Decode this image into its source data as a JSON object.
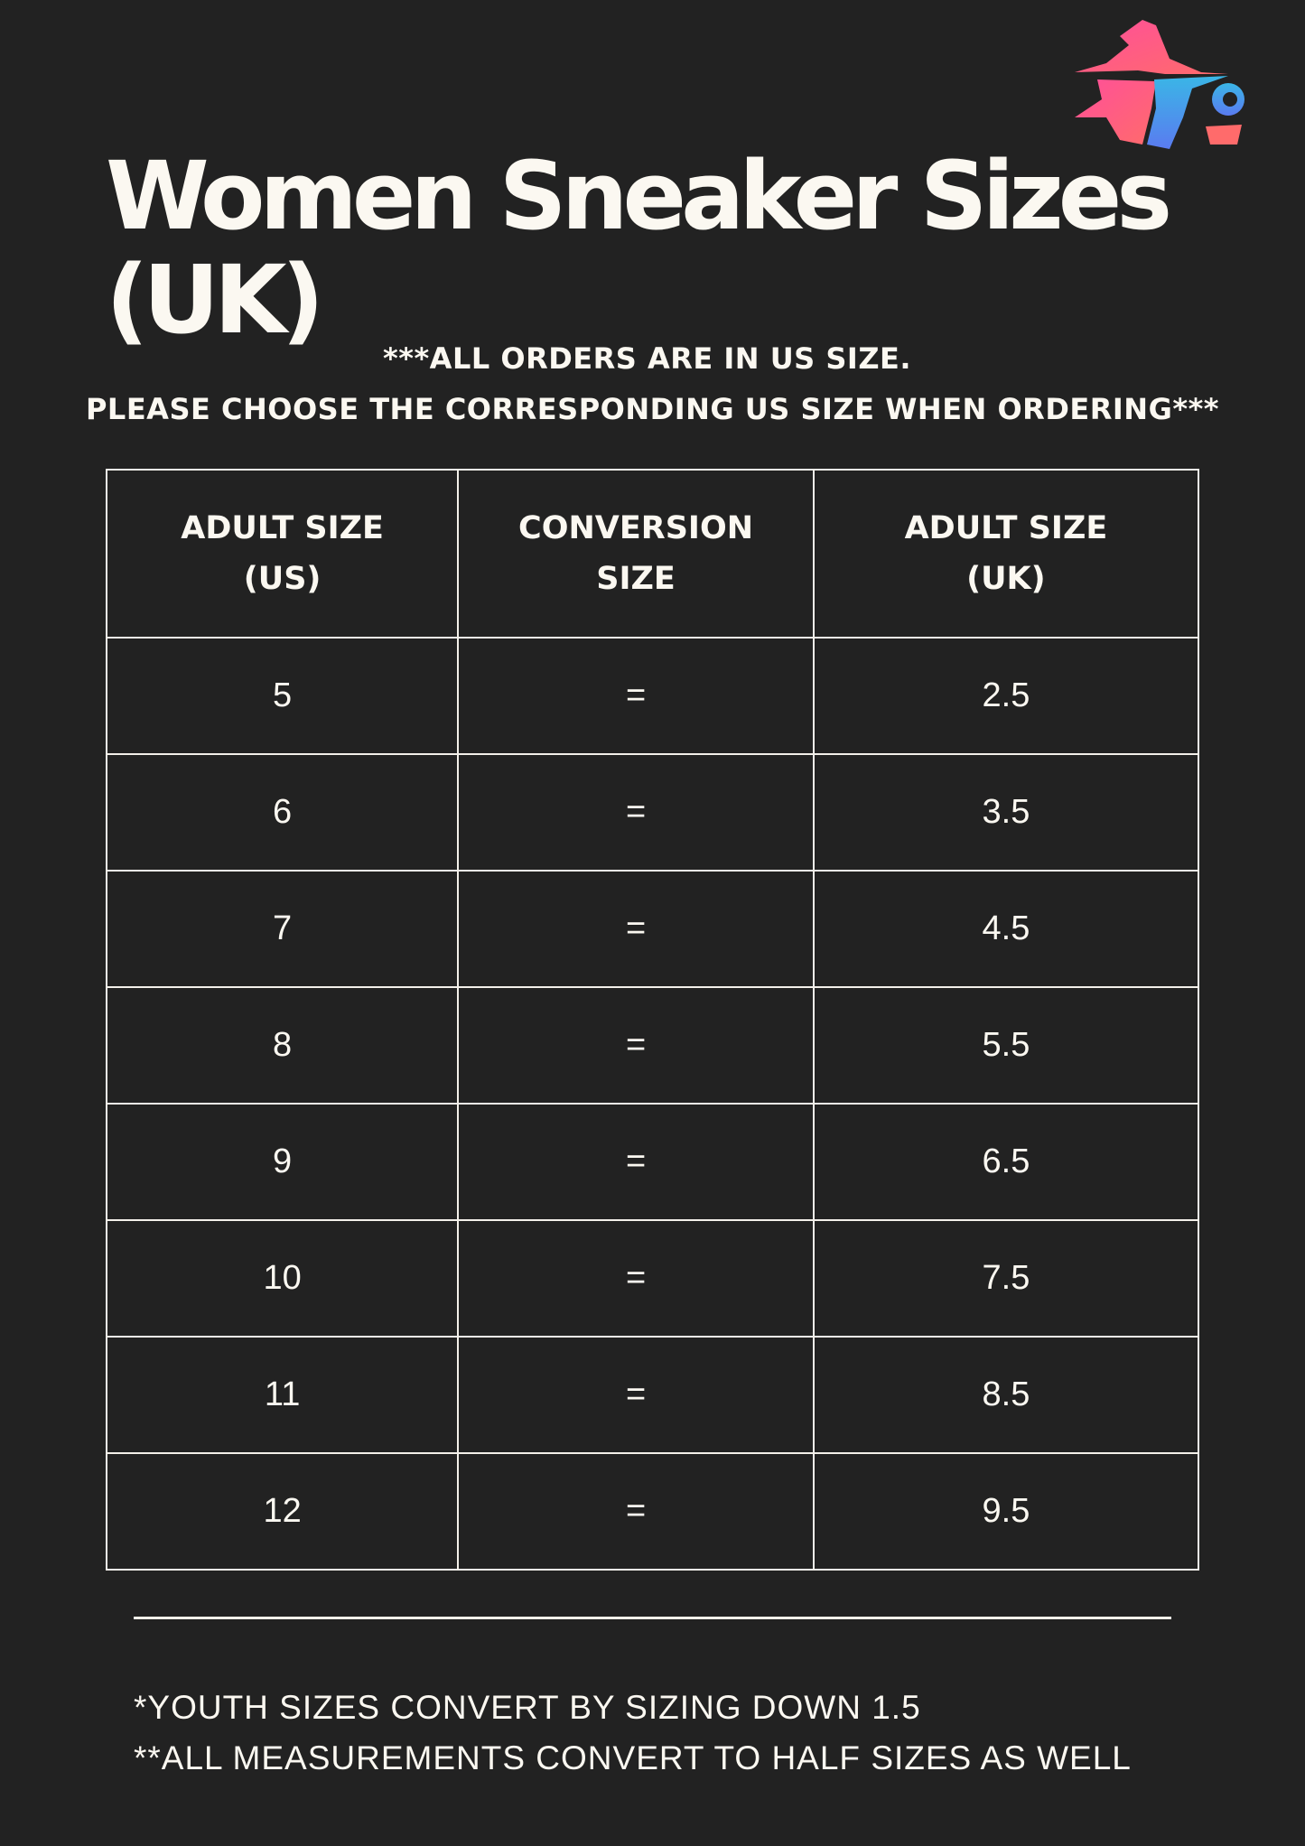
{
  "logo": {
    "alt": "wizard logo",
    "colors": [
      "#ff4f9a",
      "#ff6b6b",
      "#3ab6e6",
      "#5a7bf0"
    ]
  },
  "title": "Women Sneaker Sizes (UK)",
  "notice": [
    "***ALL ORDERS ARE IN US SIZE.",
    "PLEASE CHOOSE THE CORRESPONDING US SIZE WHEN ORDERING***"
  ],
  "table": {
    "headers": [
      [
        "ADULT SIZE",
        "(US)"
      ],
      [
        "CONVERSION",
        "SIZE"
      ],
      [
        "ADULT SIZE",
        "(UK)"
      ]
    ],
    "rows": [
      [
        "5",
        "=",
        "2.5"
      ],
      [
        "6",
        "=",
        "3.5"
      ],
      [
        "7",
        "=",
        "4.5"
      ],
      [
        "8",
        "=",
        "5.5"
      ],
      [
        "9",
        "=",
        "6.5"
      ],
      [
        "10",
        "=",
        "7.5"
      ],
      [
        "11",
        "=",
        "8.5"
      ],
      [
        "12",
        "=",
        "9.5"
      ]
    ]
  },
  "footnotes": [
    "*YOUTH SIZES CONVERT BY SIZING DOWN 1.5",
    "**ALL MEASUREMENTS CONVERT TO HALF SIZES AS WELL"
  ]
}
